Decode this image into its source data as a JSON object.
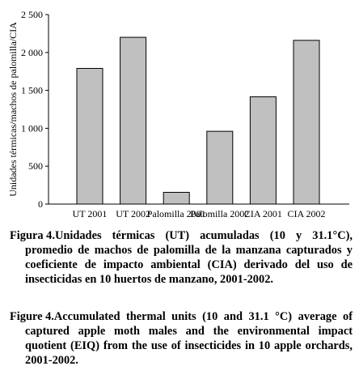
{
  "chart_data": {
    "type": "bar",
    "ylabel": "Unidades térmicas/machos de palomilla/CIA",
    "ylim": [
      0,
      2500
    ],
    "yticks": [
      0,
      500,
      1000,
      1500,
      2000,
      2500
    ],
    "ytick_labels": [
      "0",
      "500",
      "1 000",
      "1 500",
      "2 000",
      "2 500"
    ],
    "categories": [
      "UT 2001",
      "UT 2002",
      "Palomilla 2001",
      "Palomilla 2002",
      "CIA 2001",
      "CIA 2002"
    ],
    "values": [
      1790,
      2200,
      155,
      960,
      1415,
      2160
    ],
    "bar_color": "#c0c0c0",
    "grid": false,
    "legend": "none"
  },
  "captions": {
    "es": {
      "figure": "Figura 4.",
      "text": "Unidades térmicas (UT) acumuladas (10 y 31.1°C), promedio de machos de palomilla de la manzana capturados y coeficiente de impacto ambiental (CIA) derivado del uso de insecticidas en 10 huertos de manzano, 2001-2002."
    },
    "en": {
      "figure": "Figure 4.",
      "text": "Accumulated thermal units (10 and 31.1 °C) average of captured apple moth males and the environmental impact quotient (EIQ) from the use of insecticides in 10 apple orchards, 2001-2002."
    }
  }
}
